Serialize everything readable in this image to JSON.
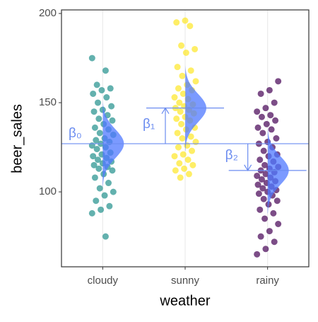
{
  "chart_data": {
    "type": "strip",
    "xlabel": "weather",
    "ylabel": "beer_sales",
    "categories": [
      "cloudy",
      "sunny",
      "rainy"
    ],
    "groups": [
      {
        "color": "#21908C",
        "mean": 127,
        "sd": 8,
        "values": [
          175,
          168,
          160,
          158,
          157,
          155,
          153,
          150,
          148,
          146,
          145,
          143,
          141,
          140,
          138,
          136,
          135,
          133,
          132,
          130,
          129,
          128,
          127,
          126,
          125,
          124,
          122,
          121,
          120,
          119,
          118,
          117,
          116,
          115,
          114,
          113,
          112,
          110,
          108,
          105,
          102,
          100,
          98,
          95,
          92,
          90,
          88,
          75
        ]
      },
      {
        "color": "#FDE725",
        "mean": 147,
        "sd": 8,
        "values": [
          196,
          195,
          193,
          182,
          180,
          178,
          170,
          168,
          165,
          162,
          160,
          158,
          157,
          155,
          153,
          152,
          150,
          149,
          148,
          147,
          146,
          145,
          144,
          142,
          141,
          140,
          138,
          136,
          135,
          133,
          131,
          130,
          128,
          126,
          125,
          123,
          121,
          120,
          118,
          116,
          115,
          113,
          112,
          110,
          108
        ]
      },
      {
        "color": "#440154",
        "mean": 112,
        "sd": 8,
        "values": [
          162,
          157,
          155,
          150,
          147,
          145,
          143,
          142,
          140,
          138,
          136,
          135,
          133,
          130,
          128,
          127,
          125,
          123,
          121,
          120,
          118,
          117,
          115,
          114,
          113,
          112,
          111,
          110,
          109,
          108,
          107,
          106,
          105,
          104,
          103,
          102,
          101,
          100,
          99,
          98,
          96,
          95,
          93,
          90,
          88,
          85,
          82,
          78,
          75,
          72,
          68,
          65
        ]
      }
    ],
    "annotations": [
      "β₀",
      "β₁",
      "β₂"
    ],
    "annotation_color": "#6b8cf0",
    "density_color": "#4f78ff",
    "ylim": [
      58,
      202
    ],
    "yticks": [
      100,
      150,
      200
    ],
    "grid": "x"
  }
}
